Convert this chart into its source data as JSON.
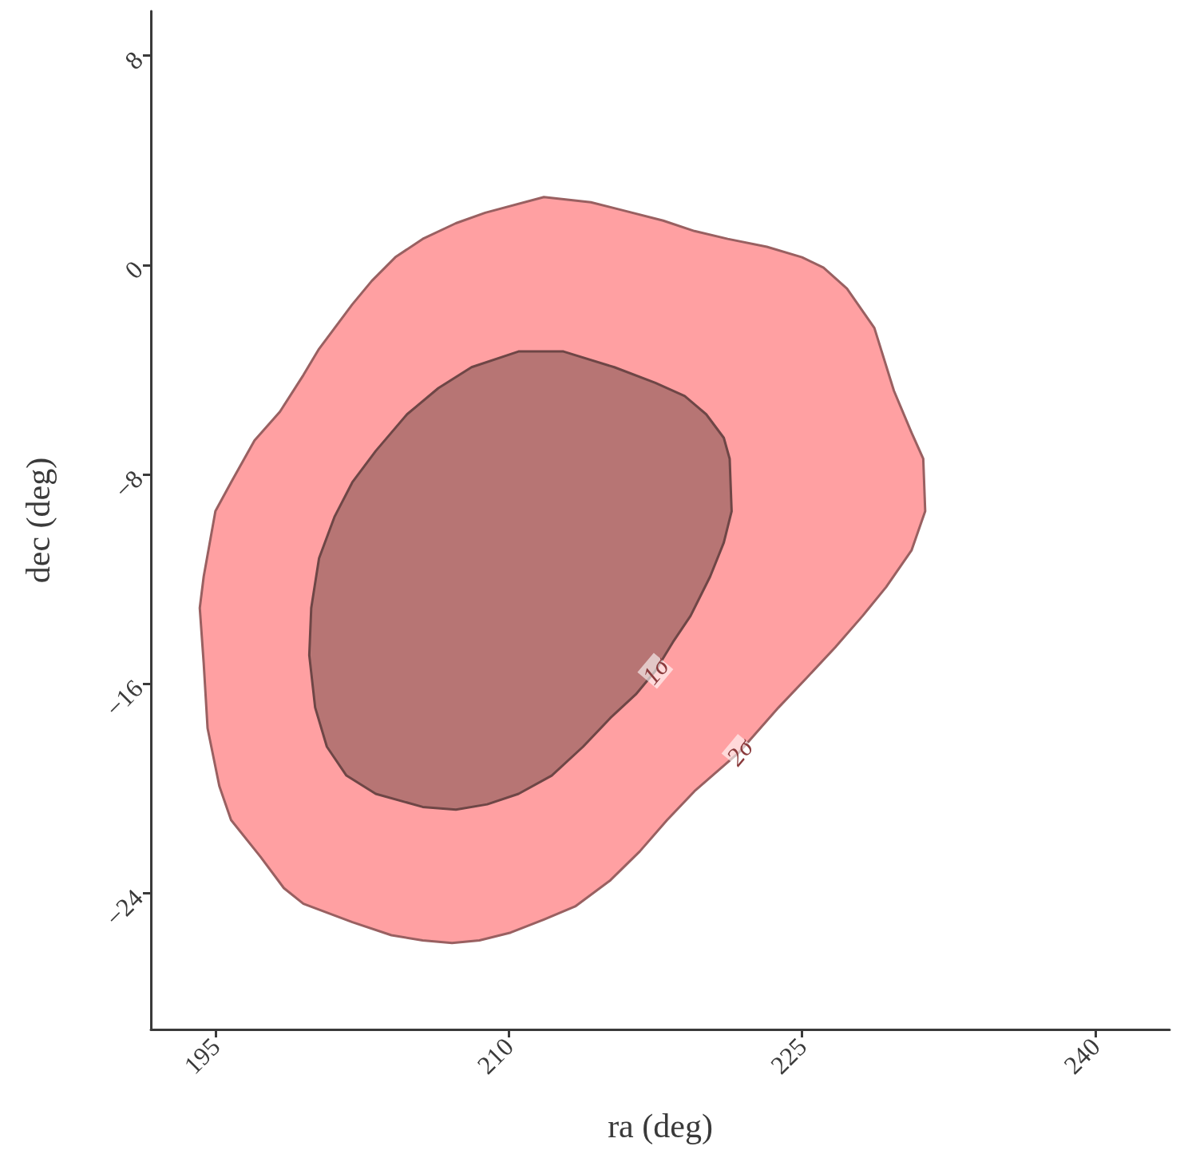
{
  "chart_data": {
    "type": "area",
    "xlabel": "ra (deg)",
    "ylabel": "dec (deg)",
    "xlim": [
      191.7,
      243.8
    ],
    "xticks": [
      195,
      210,
      225,
      240
    ],
    "ylim": [
      -29.2,
      9.7
    ],
    "yticks": [
      -24,
      -16,
      -8,
      0,
      8
    ],
    "grid": false,
    "series": [
      {
        "color": "#ffa0a2",
        "x": [
          208.8,
          211.8,
          214.2,
          215.8,
          217.9,
          219.5,
          221.2,
          223.2,
          225.0,
          226.1,
          227.3,
          228.7,
          229.7,
          230.6,
          231.2,
          231.3,
          230.6,
          229.3,
          228.1,
          226.7,
          225.2,
          223.8,
          221.8,
          219.5,
          218.1,
          216.7,
          215.2,
          213.4,
          211.8,
          210.1,
          208.5,
          207.1,
          205.6,
          204.0,
          202.0,
          199.5,
          198.5,
          197.3,
          195.8,
          195.2,
          194.6,
          194.4,
          194.2,
          194.4,
          195.0,
          195.8,
          197.0,
          198.3,
          199.5,
          200.3,
          202.0,
          203.0,
          204.2,
          205.6,
          207.3
        ],
        "values": [
          2.0,
          2.6,
          2.4,
          2.1,
          1.7,
          1.3,
          1.0,
          0.7,
          0.3,
          -0.1,
          -0.9,
          -2.4,
          -4.8,
          -6.4,
          -7.4,
          -9.4,
          -10.9,
          -12.3,
          -13.4,
          -14.6,
          -15.8,
          -16.9,
          -18.6,
          -20.1,
          -21.2,
          -22.4,
          -23.5,
          -24.5,
          -25.0,
          -25.5,
          -25.8,
          -25.9,
          -25.8,
          -25.6,
          -25.1,
          -24.4,
          -23.8,
          -22.6,
          -21.2,
          -19.9,
          -17.7,
          -15.2,
          -13.1,
          -11.9,
          -9.4,
          -8.3,
          -6.7,
          -5.6,
          -4.2,
          -3.2,
          -1.5,
          -0.6,
          0.3,
          1.0,
          1.6
        ]
      },
      {
        "color": "#b77574",
        "x": [
          208.1,
          210.5,
          212.8,
          215.4,
          217.5,
          219.0,
          220.1,
          221.0,
          221.3,
          221.4,
          221.0,
          220.3,
          219.3,
          218.4,
          217.5,
          216.5,
          215.2,
          213.8,
          212.2,
          210.5,
          208.9,
          207.3,
          205.6,
          203.2,
          201.7,
          200.7,
          200.1,
          199.8,
          199.9,
          200.3,
          201.1,
          202.0,
          203.2,
          204.8,
          206.4
        ],
        "values": [
          -3.9,
          -3.3,
          -3.3,
          -3.9,
          -4.5,
          -5.0,
          -5.7,
          -6.6,
          -7.4,
          -9.4,
          -10.6,
          -11.9,
          -13.4,
          -14.4,
          -15.5,
          -16.4,
          -17.3,
          -18.4,
          -19.5,
          -20.2,
          -20.6,
          -20.8,
          -20.7,
          -20.2,
          -19.5,
          -18.4,
          -16.9,
          -14.9,
          -13.1,
          -11.2,
          -9.6,
          -8.3,
          -7.1,
          -5.7,
          -4.7
        ]
      }
    ],
    "annotations": [
      "1σ",
      "2σ"
    ]
  }
}
